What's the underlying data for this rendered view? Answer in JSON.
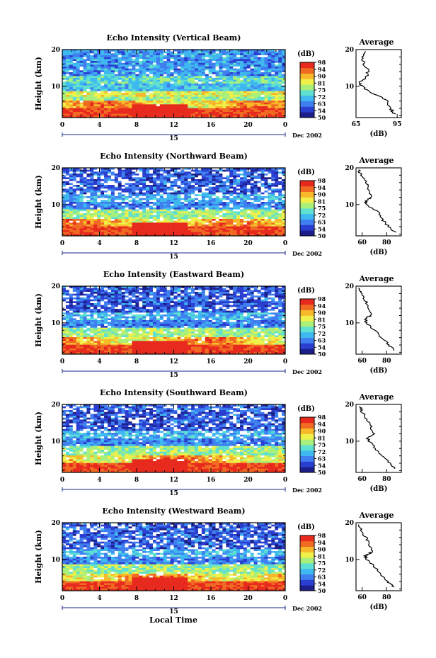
{
  "figure": {
    "xlabel": "Local Time",
    "colorbar_unit": "(dB)",
    "colorbar_ticks": [
      "50",
      "54",
      "63",
      "72",
      "75",
      "81",
      "90",
      "94",
      "98"
    ],
    "colormap": [
      "#1c1f8a",
      "#2a3fd0",
      "#3f7ff0",
      "#3fb8f0",
      "#5fe0d0",
      "#a8f07a",
      "#f0f04a",
      "#f7b82a",
      "#f06a22",
      "#e82a1e"
    ],
    "day_label": "15",
    "month_label": "Dec 2002",
    "average_title": "Average",
    "average_xlabel": "(dB)"
  },
  "chart_data": [
    {
      "type": "heatmap",
      "title": "Echo Intensity (Vertical Beam)",
      "xlabel": "Local Time",
      "ylabel": "Height (km)",
      "xlim": [
        0,
        24
      ],
      "ylim": [
        1.5,
        20
      ],
      "xticks": [
        "0",
        "4",
        "8",
        "12",
        "16",
        "20",
        "0"
      ],
      "yticks": [
        "10",
        "20"
      ],
      "value_range_db": [
        50,
        98
      ],
      "gap_fraction": 0.03,
      "profile": {
        "title": "Average",
        "xlabel": "(dB)",
        "xticks": [
          "65",
          "95"
        ],
        "yticks": [
          "10",
          "20"
        ],
        "xlim": [
          65,
          98
        ],
        "height": [
          2.5,
          4,
          6,
          8,
          10,
          11,
          12,
          14,
          16,
          18,
          19.5
        ],
        "value": [
          93,
          90,
          88,
          78,
          69,
          67,
          72,
          74,
          71,
          70,
          72
        ]
      }
    },
    {
      "type": "heatmap",
      "title": "Echo Intensity (Northward Beam)",
      "xlabel": "Local Time",
      "ylabel": "Height (km)",
      "xlim": [
        0,
        24
      ],
      "ylim": [
        1.5,
        20
      ],
      "xticks": [
        "0",
        "4",
        "8",
        "12",
        "16",
        "20",
        "0"
      ],
      "yticks": [
        "10",
        "20"
      ],
      "value_range_db": [
        50,
        98
      ],
      "gap_fraction": 0.16,
      "profile": {
        "title": "Average",
        "xlabel": "(dB)",
        "xticks": [
          "60",
          "80"
        ],
        "yticks": [
          "10",
          "20"
        ],
        "xlim": [
          55,
          92
        ],
        "height": [
          2.5,
          4,
          6,
          8,
          10,
          11,
          12,
          14,
          16,
          18,
          19.5
        ],
        "value": [
          87,
          82,
          76,
          73,
          64,
          63,
          68,
          66,
          63,
          59,
          57
        ]
      }
    },
    {
      "type": "heatmap",
      "title": "Echo Intensity (Eastward Beam)",
      "xlabel": "Local Time",
      "ylabel": "Height (km)",
      "xlim": [
        0,
        24
      ],
      "ylim": [
        1.5,
        20
      ],
      "xticks": [
        "0",
        "4",
        "8",
        "12",
        "16",
        "20",
        "0"
      ],
      "yticks": [
        "10",
        "20"
      ],
      "value_range_db": [
        50,
        98
      ],
      "gap_fraction": 0.12,
      "profile": {
        "title": "Average",
        "xlabel": "(dB)",
        "xticks": [
          "60",
          "80"
        ],
        "yticks": [
          "10",
          "20"
        ],
        "xlim": [
          55,
          92
        ],
        "height": [
          2.5,
          4,
          6,
          8,
          10,
          11,
          12,
          14,
          16,
          18,
          19.5
        ],
        "value": [
          86,
          82,
          76,
          70,
          64,
          62,
          67,
          66,
          63,
          59,
          57
        ]
      }
    },
    {
      "type": "heatmap",
      "title": "Echo Intensity (Southward Beam)",
      "xlabel": "Local Time",
      "ylabel": "Height (km)",
      "xlim": [
        0,
        24
      ],
      "ylim": [
        1.5,
        20
      ],
      "xticks": [
        "0",
        "4",
        "8",
        "12",
        "16",
        "20",
        "0"
      ],
      "yticks": [
        "10",
        "20"
      ],
      "value_range_db": [
        50,
        98
      ],
      "gap_fraction": 0.14,
      "profile": {
        "title": "Average",
        "xlabel": "(dB)",
        "xticks": [
          "60",
          "80"
        ],
        "yticks": [
          "10",
          "20"
        ],
        "xlim": [
          55,
          92
        ],
        "height": [
          2.5,
          4,
          6,
          8,
          10,
          11,
          12,
          14,
          16,
          18,
          19.5
        ],
        "value": [
          87,
          83,
          77,
          71,
          66,
          64,
          70,
          67,
          64,
          60,
          58
        ]
      }
    },
    {
      "type": "heatmap",
      "title": "Echo Intensity (Westward Beam)",
      "xlabel": "Local Time",
      "ylabel": "Height (km)",
      "xlim": [
        0,
        24
      ],
      "ylim": [
        1.5,
        20
      ],
      "xticks": [
        "0",
        "4",
        "8",
        "12",
        "16",
        "20",
        "0"
      ],
      "yticks": [
        "10",
        "20"
      ],
      "value_range_db": [
        50,
        98
      ],
      "gap_fraction": 0.15,
      "profile": {
        "title": "Average",
        "xlabel": "(dB)",
        "xticks": [
          "60",
          "80"
        ],
        "yticks": [
          "10",
          "20"
        ],
        "xlim": [
          55,
          92
        ],
        "height": [
          2.5,
          4,
          6,
          8,
          10,
          11,
          12,
          14,
          16,
          18,
          19.5
        ],
        "value": [
          86,
          81,
          75,
          70,
          64,
          62,
          68,
          66,
          63,
          59,
          57
        ]
      }
    }
  ]
}
